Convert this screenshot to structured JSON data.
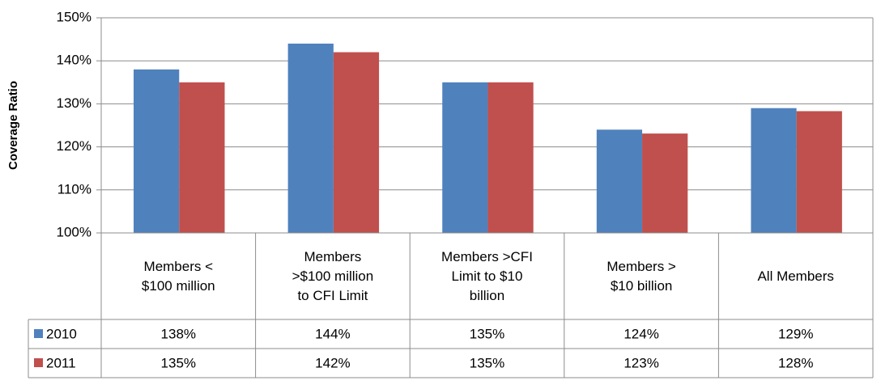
{
  "chart_data": {
    "type": "bar",
    "y_label": "Coverage Ratio",
    "categories": [
      "Members <\n$100 million",
      "Members\n>$100 million\nto CFI Limit",
      "Members >CFI\nLimit to $10\nbillion",
      "Members >\n$10 billion",
      "All Members"
    ],
    "series": [
      {
        "name": "2010",
        "color": "#4f81bd",
        "values": [
          138,
          144,
          135,
          124,
          129
        ],
        "value_labels": [
          "138%",
          "144%",
          "135%",
          "124%",
          "129%"
        ]
      },
      {
        "name": "2011",
        "color": "#c0504d",
        "values": [
          135,
          142,
          135,
          123.1,
          128.3
        ],
        "value_labels": [
          "135%",
          "142%",
          "135%",
          "123%",
          "128%"
        ]
      }
    ],
    "ylim": [
      100,
      150
    ],
    "yticks": [
      {
        "value": 100,
        "label": "100%"
      },
      {
        "value": 110,
        "label": "110%"
      },
      {
        "value": 120,
        "label": "120%"
      },
      {
        "value": 130,
        "label": "130%"
      },
      {
        "value": 140,
        "label": "140%"
      },
      {
        "value": 150,
        "label": "150%"
      }
    ],
    "grid": true
  }
}
